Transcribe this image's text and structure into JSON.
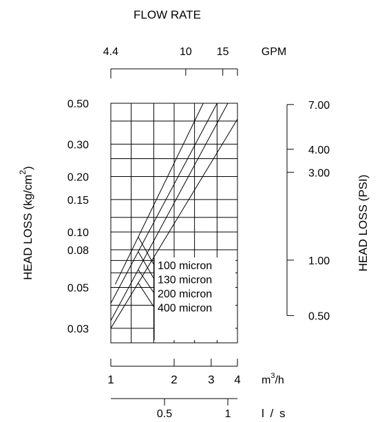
{
  "chart_data": {
    "type": "line",
    "title": "FLOW RATE",
    "left_axis_label": "HEAD LOSS (kg/cm",
    "left_axis_label_sup": "2",
    "left_axis_label_end": ")",
    "right_axis_label": "HEAD LOSS (PSI)",
    "x_scale": "log",
    "y_scale": "log",
    "xlim_m3h": [
      1,
      4
    ],
    "ylim_kgcm2": [
      0.025,
      0.5
    ],
    "x_axes": {
      "gpm": {
        "unit": "GPM",
        "ticks": [
          {
            "value": 4.4,
            "label": "4.4"
          },
          {
            "value": 10,
            "label": "10"
          },
          {
            "value": 15,
            "label": "15"
          }
        ]
      },
      "m3h": {
        "unit_base": "m",
        "unit_sup": "3",
        "unit_end": "/h",
        "ticks": [
          {
            "value": 1,
            "label": "1"
          },
          {
            "value": 2,
            "label": "2"
          },
          {
            "value": 3,
            "label": "3"
          },
          {
            "value": 4,
            "label": "4"
          }
        ]
      },
      "ls": {
        "unit": "l / s",
        "ticks": [
          {
            "value": 0.5,
            "label": "0.5"
          },
          {
            "value": 1,
            "label": "1"
          }
        ]
      }
    },
    "y_left_ticks": [
      {
        "value": 0.5,
        "label": "0.50"
      },
      {
        "value": 0.3,
        "label": "0.30"
      },
      {
        "value": 0.2,
        "label": "0.20"
      },
      {
        "value": 0.15,
        "label": "0.15"
      },
      {
        "value": 0.1,
        "label": "0.10"
      },
      {
        "value": 0.08,
        "label": "0.08"
      },
      {
        "value": 0.05,
        "label": "0.05"
      },
      {
        "value": 0.03,
        "label": "0.03"
      }
    ],
    "y_right_ticks": [
      {
        "value": 7.0,
        "label": "7.00"
      },
      {
        "value": 4.0,
        "label": "4.00"
      },
      {
        "value": 3.0,
        "label": "3.00"
      },
      {
        "value": 1.0,
        "label": "1.00"
      },
      {
        "value": 0.5,
        "label": "0.50"
      }
    ],
    "grid_x": [
      1,
      1.25,
      1.6,
      2,
      2.5,
      3.2,
      4
    ],
    "grid_y": [
      0.025,
      0.03,
      0.04,
      0.05,
      0.06,
      0.07,
      0.08,
      0.1,
      0.12,
      0.15,
      0.2,
      0.25,
      0.3,
      0.4,
      0.5
    ],
    "series": [
      {
        "name": "100 micron",
        "points": [
          [
            1.05,
            0.052
          ],
          [
            2.75,
            0.5
          ]
        ]
      },
      {
        "name": "130 micron",
        "points": [
          [
            1.0,
            0.041
          ],
          [
            3.2,
            0.5
          ]
        ]
      },
      {
        "name": "200 micron",
        "points": [
          [
            1.0,
            0.033
          ],
          [
            3.6,
            0.5
          ]
        ]
      },
      {
        "name": "400 micron",
        "points": [
          [
            1.0,
            0.03
          ],
          [
            4.0,
            0.41
          ]
        ]
      }
    ]
  }
}
